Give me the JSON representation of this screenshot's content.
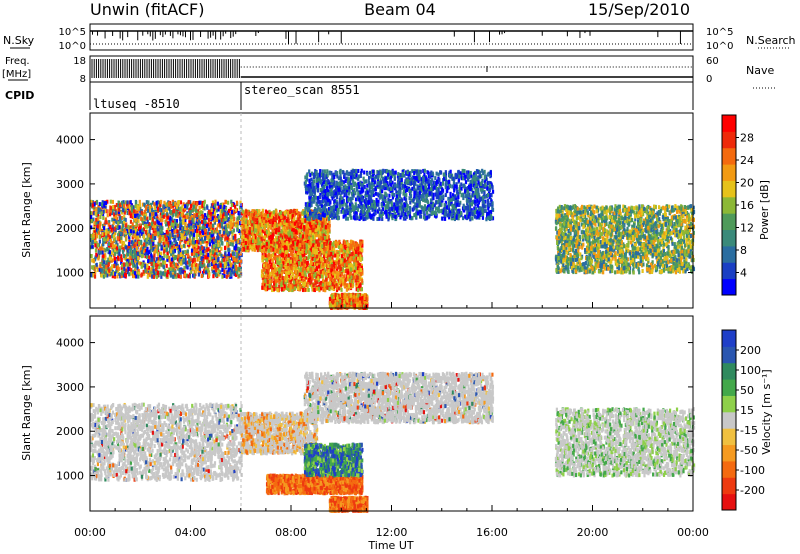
{
  "header": {
    "station": "Unwin (fitACF)",
    "beam": "Beam 04",
    "date": "15/Sep/2010"
  },
  "top_panels": {
    "nsky_label": "N.Sky",
    "nsky_ticks": [
      "10^5",
      "10^0"
    ],
    "nsearch_label": "N.Search",
    "nsearch_ticks": [
      "10^5",
      "10^0"
    ],
    "freq_label": "Freq.",
    "freq_unit": "[MHz]",
    "freq_ticks": [
      "18",
      "8"
    ],
    "nave_label": "Nave",
    "nave_ticks": [
      "60",
      "0"
    ],
    "cpid_label": "CPID",
    "cpid_segments": [
      {
        "label": "ltuseq -8510",
        "start": "00:00",
        "end": "06:00"
      },
      {
        "label": "stereo_scan 8551",
        "start": "06:00",
        "end": "24:00"
      }
    ]
  },
  "chart_data": [
    {
      "type": "heatmap",
      "name": "power",
      "ylabel": "Slant Range [km]",
      "xlabel": "Time UT",
      "ylim": [
        200,
        4600
      ],
      "yticks": [
        1000,
        2000,
        3000,
        4000
      ],
      "xlim_hours": [
        0,
        24
      ],
      "colorbar": {
        "label": "Power [dB]",
        "ticks": [
          "4",
          "8",
          "12",
          "16",
          "20",
          "24",
          "28"
        ],
        "range": [
          0,
          30
        ],
        "colors": [
          "#0000ff",
          "#1a3fc4",
          "#2a6da0",
          "#3a8a7a",
          "#4f9a5a",
          "#8cb836",
          "#e6c21a",
          "#f29a12",
          "#f46a0e",
          "#ee2a0a",
          "#ff0000"
        ]
      },
      "echo_regions": [
        {
          "t": [
            0.0,
            6.0
          ],
          "range_km": [
            900,
            2600
          ],
          "level": "mixed",
          "note_value_db": [
            6,
            22
          ]
        },
        {
          "t": [
            6.0,
            9.5
          ],
          "range_km": [
            1500,
            2400
          ],
          "level": "strong",
          "note_value_db": [
            16,
            28
          ]
        },
        {
          "t": [
            6.8,
            10.8
          ],
          "range_km": [
            600,
            1700
          ],
          "level": "strong",
          "note_value_db": [
            18,
            30
          ]
        },
        {
          "t": [
            9.5,
            11.0
          ],
          "range_km": [
            200,
            500
          ],
          "level": "strong",
          "note_value_db": [
            20,
            30
          ]
        },
        {
          "t": [
            8.5,
            16.0
          ],
          "range_km": [
            2200,
            3300
          ],
          "level": "weak",
          "note_value_db": [
            4,
            14
          ]
        },
        {
          "t": [
            18.5,
            24.0
          ],
          "range_km": [
            1000,
            2500
          ],
          "level": "medium",
          "note_value_db": [
            8,
            24
          ]
        }
      ]
    },
    {
      "type": "heatmap",
      "name": "velocity",
      "ylabel": "Slant Range [km]",
      "xlabel": "Time UT",
      "ylim": [
        200,
        4600
      ],
      "yticks": [
        1000,
        2000,
        3000,
        4000
      ],
      "xlim_hours": [
        0,
        24
      ],
      "colorbar": {
        "label": "Velocity [m s⁻¹]",
        "ticks": [
          "200",
          "100",
          "50",
          "15",
          "-15",
          "-50",
          "-100",
          "-200"
        ],
        "colors": [
          "#1f3fc8",
          "#2a56b0",
          "#2f8a5e",
          "#43a84a",
          "#8ed04a",
          "#c8c8c8",
          "#f0c040",
          "#f59a20",
          "#f46a10",
          "#ee3a10",
          "#e61010"
        ]
      },
      "echo_regions": [
        {
          "t": [
            0.0,
            6.0
          ],
          "range_km": [
            900,
            2600
          ],
          "velocity": "~0 (grey)"
        },
        {
          "t": [
            6.0,
            9.0
          ],
          "range_km": [
            1500,
            2400
          ],
          "velocity": "~0 to -50"
        },
        {
          "t": [
            7.0,
            10.8
          ],
          "range_km": [
            600,
            1000
          ],
          "velocity": "-50 to -100"
        },
        {
          "t": [
            8.5,
            10.8
          ],
          "range_km": [
            1000,
            1700
          ],
          "velocity": "15 to 200"
        },
        {
          "t": [
            9.5,
            11.0
          ],
          "range_km": [
            200,
            500
          ],
          "velocity": "-50 to -100"
        },
        {
          "t": [
            8.5,
            16.0
          ],
          "range_km": [
            2200,
            3300
          ],
          "velocity": "~0 (grey)"
        },
        {
          "t": [
            18.5,
            24.0
          ],
          "range_km": [
            1000,
            2500
          ],
          "velocity": "~0 with positive patches"
        }
      ]
    }
  ],
  "time_axis": {
    "label": "Time UT",
    "ticks": [
      "00:00",
      "04:00",
      "08:00",
      "12:00",
      "16:00",
      "20:00",
      "00:00"
    ]
  }
}
